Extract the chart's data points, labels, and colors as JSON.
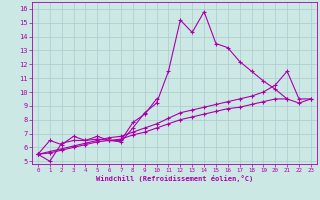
{
  "xlabel": "Windchill (Refroidissement éolien,°C)",
  "bg_color": "#cce8e4",
  "grid_color": "#aacccc",
  "line_color": "#aa00aa",
  "xlim": [
    -0.5,
    23.5
  ],
  "ylim": [
    4.8,
    16.5
  ],
  "xticks": [
    0,
    1,
    2,
    3,
    4,
    5,
    6,
    7,
    8,
    9,
    10,
    11,
    12,
    13,
    14,
    15,
    16,
    17,
    18,
    19,
    20,
    21,
    22,
    23
  ],
  "yticks": [
    5,
    6,
    7,
    8,
    9,
    10,
    11,
    12,
    13,
    14,
    15,
    16
  ],
  "series1_x": [
    0,
    1,
    2,
    3,
    4,
    5,
    6,
    7,
    8,
    9,
    10,
    11,
    12,
    13,
    14,
    15,
    16,
    17,
    18,
    19,
    20,
    21
  ],
  "series1_y": [
    5.5,
    6.5,
    6.2,
    6.8,
    6.5,
    6.6,
    6.5,
    6.4,
    7.4,
    8.5,
    9.2,
    11.5,
    15.2,
    14.3,
    15.8,
    13.5,
    13.2,
    12.2,
    11.5,
    10.8,
    10.2,
    9.5
  ],
  "series2_x": [
    0,
    1,
    2,
    3,
    4,
    5,
    6,
    7,
    8,
    9,
    10
  ],
  "series2_y": [
    5.5,
    5.0,
    6.3,
    6.5,
    6.5,
    6.8,
    6.5,
    6.5,
    7.8,
    8.4,
    9.5
  ],
  "series3_x": [
    0,
    1,
    2,
    3,
    4,
    5,
    6,
    7,
    8,
    9,
    10,
    11,
    12,
    13,
    14,
    15,
    16,
    17,
    18,
    19,
    20,
    21,
    22,
    23
  ],
  "series3_y": [
    5.5,
    5.7,
    5.9,
    6.1,
    6.3,
    6.5,
    6.7,
    6.8,
    7.1,
    7.4,
    7.7,
    8.1,
    8.5,
    8.7,
    8.9,
    9.1,
    9.3,
    9.5,
    9.7,
    10.0,
    10.5,
    11.5,
    9.5,
    9.5
  ],
  "series4_x": [
    0,
    1,
    2,
    3,
    4,
    5,
    6,
    7,
    8,
    9,
    10,
    11,
    12,
    13,
    14,
    15,
    16,
    17,
    18,
    19,
    20,
    21,
    22,
    23
  ],
  "series4_y": [
    5.5,
    5.6,
    5.8,
    6.0,
    6.2,
    6.4,
    6.5,
    6.6,
    6.9,
    7.1,
    7.4,
    7.7,
    8.0,
    8.2,
    8.4,
    8.6,
    8.8,
    8.9,
    9.1,
    9.3,
    9.5,
    9.5,
    9.2,
    9.5
  ]
}
